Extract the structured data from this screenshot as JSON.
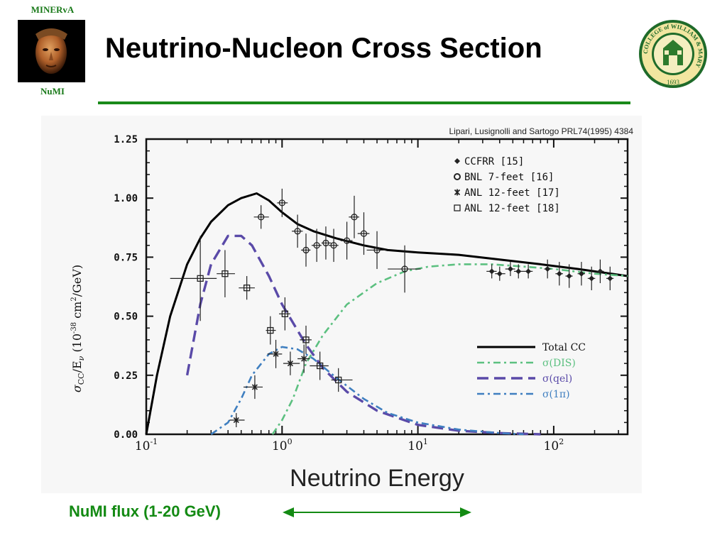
{
  "header": {
    "brand_top": "MINERvA",
    "brand_bottom": "NuMI",
    "title": "Neutrino-Nucleon Cross Section"
  },
  "seal": {
    "ring_text": "COLLEGE of WILLIAM & MARY",
    "year": "1693"
  },
  "colors": {
    "accent_green": "#1a8a1a",
    "total_cc": "#000000",
    "dis": "#5cc080",
    "qel": "#5a4aa8",
    "one_pi": "#3f7fc0"
  },
  "footer": {
    "flux_label": "NuMI flux (1-20 GeV)"
  },
  "chart_data": {
    "type": "line",
    "citation": "Lipari, Lusignolli and Sartogo PRL74(1995) 4384",
    "xlabel": "Neutrino Energy",
    "ylabel": "σCC/Eν (10^-38 cm^2/GeV)",
    "x_scale": "log",
    "xlim": [
      0.1,
      350
    ],
    "ylim": [
      0,
      1.25
    ],
    "x_ticks": [
      {
        "value": 0.1,
        "base": "10",
        "exp": "-1"
      },
      {
        "value": 1,
        "base": "10",
        "exp": "0"
      },
      {
        "value": 10,
        "base": "10",
        "exp": "1"
      },
      {
        "value": 100,
        "base": "10",
        "exp": "2"
      }
    ],
    "y_ticks": [
      "0.00",
      "0.25",
      "0.50",
      "0.75",
      "1.00",
      "1.25"
    ],
    "y_tick_values": [
      0,
      0.25,
      0.5,
      0.75,
      1.0,
      1.25
    ],
    "legend_data": {
      "placement": "top-right",
      "entries": [
        "CCFRR [15]",
        "BNL 7-feet [16]",
        "ANL 12-feet [17]",
        "ANL 12-feet [18]"
      ]
    },
    "legend_theory": {
      "placement": "bottom-right",
      "entries": [
        "Total CC",
        "σ(DIS)",
        "σ(qel)",
        "σ(1π)"
      ]
    },
    "series": [
      {
        "name": "Total CC",
        "style": "solid",
        "x": [
          0.1,
          0.12,
          0.15,
          0.2,
          0.25,
          0.3,
          0.4,
          0.5,
          0.65,
          0.8,
          1.0,
          1.3,
          1.7,
          2.5,
          4,
          6,
          10,
          20,
          40,
          80,
          150,
          350
        ],
        "y": [
          0.0,
          0.25,
          0.5,
          0.72,
          0.83,
          0.9,
          0.97,
          1.0,
          1.02,
          0.99,
          0.94,
          0.89,
          0.86,
          0.83,
          0.8,
          0.78,
          0.77,
          0.76,
          0.74,
          0.72,
          0.7,
          0.67
        ]
      },
      {
        "name": "σ(DIS)",
        "style": "dash-dot",
        "x": [
          0.85,
          1.0,
          1.2,
          1.5,
          2.0,
          3.0,
          5.0,
          8.0,
          12,
          20,
          35,
          60,
          100,
          200,
          350
        ],
        "y": [
          0.0,
          0.06,
          0.15,
          0.3,
          0.42,
          0.55,
          0.64,
          0.69,
          0.71,
          0.72,
          0.72,
          0.71,
          0.7,
          0.68,
          0.67
        ]
      },
      {
        "name": "σ(qel)",
        "style": "long-dash",
        "x": [
          0.2,
          0.25,
          0.3,
          0.4,
          0.5,
          0.6,
          0.8,
          1.0,
          1.5,
          2.0,
          3.0,
          5.0,
          10,
          20,
          40,
          80
        ],
        "y": [
          0.25,
          0.55,
          0.72,
          0.84,
          0.84,
          0.8,
          0.67,
          0.55,
          0.38,
          0.28,
          0.18,
          0.1,
          0.04,
          0.015,
          0.005,
          0.0
        ]
      },
      {
        "name": "σ(1π)",
        "style": "dash-dot",
        "x": [
          0.3,
          0.4,
          0.5,
          0.6,
          0.8,
          1.0,
          1.3,
          1.7,
          2.5,
          4,
          6,
          10,
          20,
          40,
          60
        ],
        "y": [
          0.0,
          0.05,
          0.15,
          0.25,
          0.34,
          0.37,
          0.36,
          0.32,
          0.24,
          0.15,
          0.09,
          0.05,
          0.02,
          0.005,
          0.0
        ]
      }
    ],
    "points": [
      {
        "x": 0.25,
        "y": 0.66,
        "xerr": [
          0.15,
          0.33
        ],
        "yerr": 0.18,
        "m": "square"
      },
      {
        "x": 0.38,
        "y": 0.68,
        "xerr": [
          0.33,
          0.45
        ],
        "yerr": 0.1,
        "m": "square"
      },
      {
        "x": 0.55,
        "y": 0.62,
        "xerr": [
          0.48,
          0.63
        ],
        "yerr": 0.05,
        "m": "square"
      },
      {
        "x": 0.82,
        "y": 0.44,
        "xerr": [
          0.76,
          0.9
        ],
        "yerr": 0.06,
        "m": "square"
      },
      {
        "x": 1.05,
        "y": 0.51,
        "xerr": [
          0.95,
          1.15
        ],
        "yerr": 0.07,
        "m": "square"
      },
      {
        "x": 1.5,
        "y": 0.4,
        "xerr": [
          1.35,
          1.65
        ],
        "yerr": 0.06,
        "m": "square"
      },
      {
        "x": 1.9,
        "y": 0.29,
        "xerr": [
          1.6,
          2.2
        ],
        "yerr": 0.06,
        "m": "square"
      },
      {
        "x": 2.6,
        "y": 0.23,
        "xerr": [
          2.3,
          3.3
        ],
        "yerr": 0.05,
        "m": "square"
      },
      {
        "x": 0.46,
        "y": 0.06,
        "xerr": [
          0.41,
          0.53
        ],
        "yerr": 0.03,
        "m": "star"
      },
      {
        "x": 0.63,
        "y": 0.2,
        "xerr": [
          0.52,
          0.72
        ],
        "yerr": 0.05,
        "m": "star"
      },
      {
        "x": 0.9,
        "y": 0.34,
        "xerr": [
          0.78,
          1.0
        ],
        "yerr": 0.06,
        "m": "star"
      },
      {
        "x": 1.15,
        "y": 0.3,
        "xerr": [
          1.02,
          1.35
        ],
        "yerr": 0.05,
        "m": "star"
      },
      {
        "x": 1.45,
        "y": 0.32,
        "xerr": [
          1.3,
          1.6
        ],
        "yerr": 0.06,
        "m": "star"
      },
      {
        "x": 0.7,
        "y": 0.92,
        "xerr": [
          0.62,
          0.8
        ],
        "yerr": 0.05,
        "m": "circle"
      },
      {
        "x": 1.0,
        "y": 0.98,
        "xerr": [
          0.92,
          1.1
        ],
        "yerr": 0.06,
        "m": "circle"
      },
      {
        "x": 1.3,
        "y": 0.86,
        "xerr": [
          1.18,
          1.42
        ],
        "yerr": 0.07,
        "m": "circle"
      },
      {
        "x": 1.5,
        "y": 0.78,
        "xerr": [
          1.38,
          1.62
        ],
        "yerr": 0.07,
        "m": "circle"
      },
      {
        "x": 1.8,
        "y": 0.8,
        "xerr": [
          1.65,
          1.95
        ],
        "yerr": 0.07,
        "m": "circle"
      },
      {
        "x": 2.1,
        "y": 0.81,
        "xerr": [
          1.95,
          2.3
        ],
        "yerr": 0.07,
        "m": "circle"
      },
      {
        "x": 2.4,
        "y": 0.8,
        "xerr": [
          2.2,
          2.6
        ],
        "yerr": 0.07,
        "m": "circle"
      },
      {
        "x": 3.0,
        "y": 0.82,
        "xerr": [
          2.7,
          3.3
        ],
        "yerr": 0.08,
        "m": "circle"
      },
      {
        "x": 3.4,
        "y": 0.92,
        "xerr": [
          3.1,
          3.7
        ],
        "yerr": 0.09,
        "m": "circle"
      },
      {
        "x": 4.0,
        "y": 0.85,
        "xerr": [
          3.6,
          4.4
        ],
        "yerr": 0.09,
        "m": "circle"
      },
      {
        "x": 5.0,
        "y": 0.78,
        "xerr": [
          4.2,
          5.8
        ],
        "yerr": 0.08,
        "m": "circle"
      },
      {
        "x": 8.0,
        "y": 0.7,
        "xerr": [
          6.0,
          10.5
        ],
        "yerr": 0.1,
        "m": "circle"
      },
      {
        "x": 35,
        "y": 0.69,
        "xerr": [
          32,
          38
        ],
        "yerr": 0.03,
        "m": "diamond"
      },
      {
        "x": 40,
        "y": 0.68,
        "xerr": [
          37,
          44
        ],
        "yerr": 0.03,
        "m": "diamond"
      },
      {
        "x": 48,
        "y": 0.7,
        "xerr": [
          44,
          52
        ],
        "yerr": 0.03,
        "m": "diamond"
      },
      {
        "x": 55,
        "y": 0.69,
        "xerr": [
          51,
          60
        ],
        "yerr": 0.03,
        "m": "diamond"
      },
      {
        "x": 65,
        "y": 0.69,
        "xerr": [
          60,
          70
        ],
        "yerr": 0.03,
        "m": "diamond"
      },
      {
        "x": 90,
        "y": 0.7,
        "xerr": [
          85,
          95
        ],
        "yerr": 0.04,
        "m": "diamond"
      },
      {
        "x": 110,
        "y": 0.68,
        "xerr": [
          103,
          117
        ],
        "yerr": 0.05,
        "m": "diamond"
      },
      {
        "x": 130,
        "y": 0.67,
        "xerr": [
          122,
          138
        ],
        "yerr": 0.05,
        "m": "diamond"
      },
      {
        "x": 160,
        "y": 0.68,
        "xerr": [
          150,
          170
        ],
        "yerr": 0.05,
        "m": "diamond"
      },
      {
        "x": 190,
        "y": 0.66,
        "xerr": [
          178,
          202
        ],
        "yerr": 0.05,
        "m": "diamond"
      },
      {
        "x": 220,
        "y": 0.69,
        "xerr": [
          206,
          234
        ],
        "yerr": 0.05,
        "m": "diamond"
      },
      {
        "x": 260,
        "y": 0.66,
        "xerr": [
          244,
          276
        ],
        "yerr": 0.05,
        "m": "diamond"
      }
    ]
  }
}
